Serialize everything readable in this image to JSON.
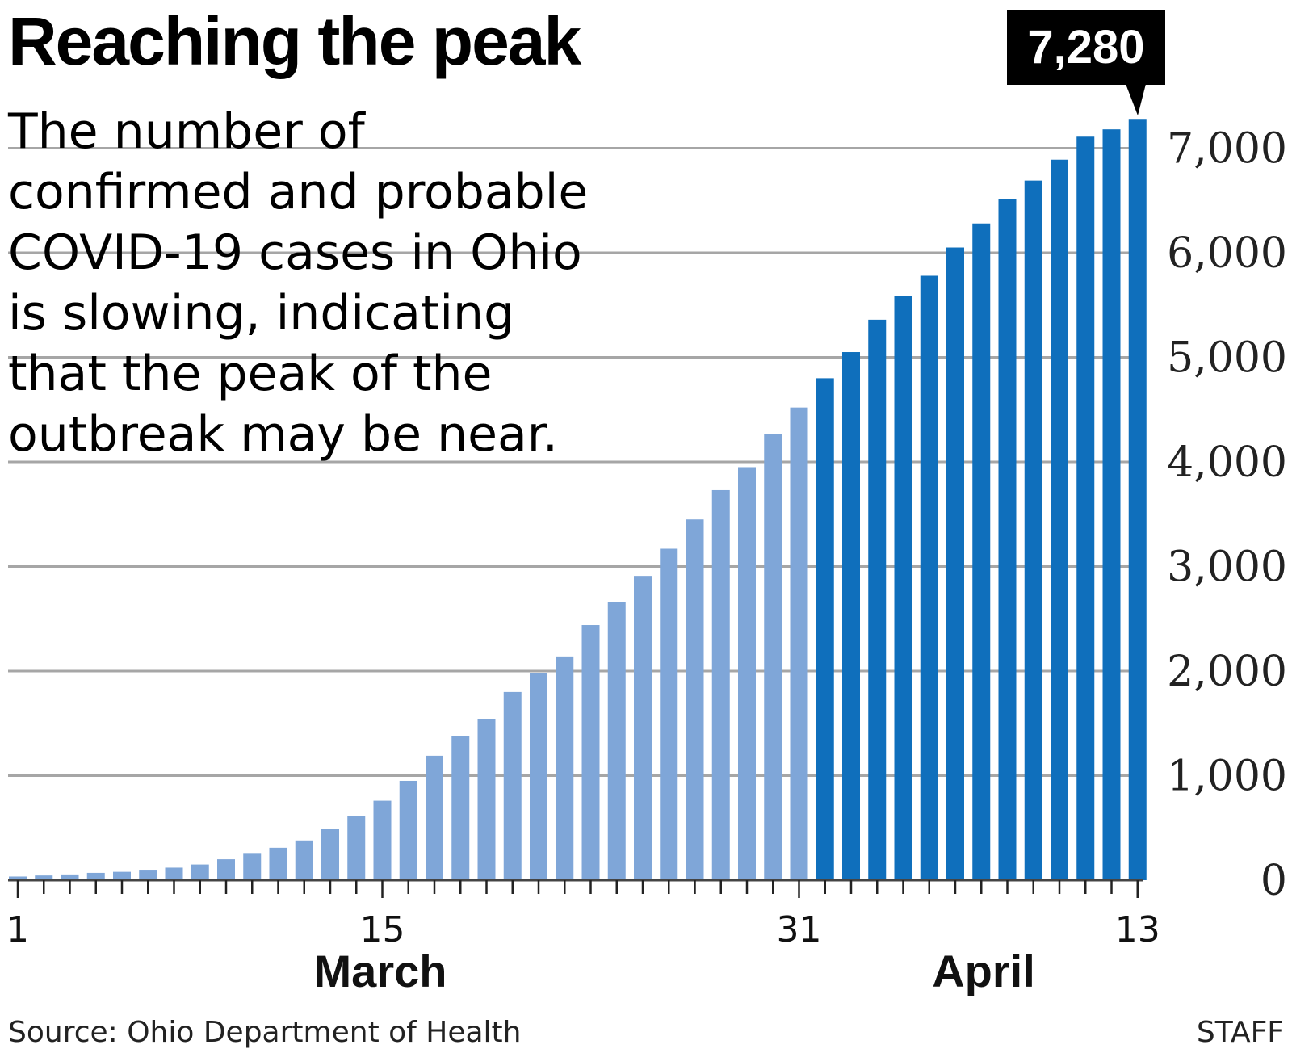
{
  "chart_data": {
    "type": "bar",
    "title": "Reaching the peak",
    "subtitle_lines": [
      "The number of",
      "confirmed and probable",
      "COVID-19 cases in Ohio",
      "is slowing, indicating",
      "that the peak of the",
      "outbreak may be near."
    ],
    "x_tick_labels": [
      {
        "day_index": 1,
        "label": "1"
      },
      {
        "day_index": 15,
        "label": "15"
      },
      {
        "day_index": 31,
        "label": "31"
      },
      {
        "day_index": 44,
        "label": "13"
      }
    ],
    "month_labels": [
      "March",
      "April"
    ],
    "y_ticks": [
      {
        "value": 0,
        "label": "0"
      },
      {
        "value": 1000,
        "label": "1,000"
      },
      {
        "value": 2000,
        "label": "2,000"
      },
      {
        "value": 3000,
        "label": "3,000"
      },
      {
        "value": 4000,
        "label": "4,000"
      },
      {
        "value": 5000,
        "label": "5,000"
      },
      {
        "value": 6000,
        "label": "6,000"
      },
      {
        "value": 7000,
        "label": "7,000"
      }
    ],
    "ylim": [
      0,
      7280
    ],
    "grid": true,
    "series": [
      {
        "name": "March",
        "color": "#7fa6d8",
        "days": [
          1,
          2,
          3,
          4,
          5,
          6,
          7,
          8,
          9,
          10,
          11,
          12,
          13,
          14,
          15,
          16,
          17,
          18,
          19,
          20,
          21,
          22,
          23,
          24,
          25,
          26,
          27,
          28,
          29,
          30,
          31
        ],
        "values": [
          35,
          45,
          55,
          70,
          80,
          100,
          120,
          150,
          200,
          260,
          310,
          380,
          490,
          610,
          760,
          950,
          1190,
          1380,
          1540,
          1800,
          1980,
          2140,
          2440,
          2660,
          2910,
          3170,
          3450,
          3730,
          3950,
          4270,
          4520
        ]
      },
      {
        "name": "April",
        "color": "#0f6fbc",
        "days": [
          32,
          33,
          34,
          35,
          36,
          37,
          38,
          39,
          40,
          41,
          42,
          43,
          44
        ],
        "values": [
          4800,
          5050,
          5360,
          5590,
          5780,
          6050,
          6280,
          6510,
          6690,
          6890,
          7110,
          7180,
          7280
        ]
      }
    ],
    "annotation": {
      "day_index": 44,
      "label": "7,280"
    },
    "source": "Source: Ohio Department of Health",
    "credit": "STAFF"
  }
}
